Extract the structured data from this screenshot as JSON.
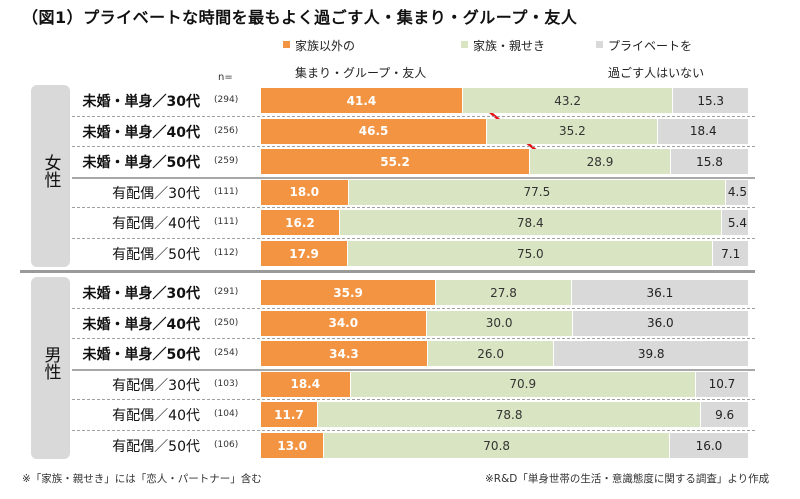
{
  "chart_data": {
    "type": "bar",
    "stacked": true,
    "orientation": "horizontal",
    "title": "（図1）プライベートな時間を最もよく過ごす人・集まり・グループ・友人",
    "n_header": "n=",
    "legend": [
      {
        "name": "家族以外の集まり・グループ・友人",
        "lines": [
          "家族以外の",
          "集まり・グループ・友人"
        ],
        "color": "#f39443"
      },
      {
        "name": "家族・親せき",
        "lines": [
          "家族・親せき"
        ],
        "color": "#d9e5c2"
      },
      {
        "name": "プライベートを過ごす人はいない",
        "lines": [
          "プライベートを",
          "過ごす人はいない"
        ],
        "color": "#d9d9d9"
      }
    ],
    "groups": [
      {
        "label": "女性",
        "rows": [
          {
            "label": "未婚・単身／30代",
            "bold": true,
            "n": "(294)",
            "values": [
              41.4,
              43.2,
              15.3
            ]
          },
          {
            "label": "未婚・単身／40代",
            "bold": true,
            "n": "(256)",
            "values": [
              46.5,
              35.2,
              18.4
            ]
          },
          {
            "label": "未婚・単身／50代",
            "bold": true,
            "n": "(259)",
            "values": [
              55.2,
              28.9,
              15.8
            ]
          },
          {
            "label": "有配偶／30代",
            "bold": false,
            "n": "(111)",
            "values": [
              18.0,
              77.5,
              4.5
            ]
          },
          {
            "label": "有配偶／40代",
            "bold": false,
            "n": "(111)",
            "values": [
              16.2,
              78.4,
              5.4
            ]
          },
          {
            "label": "有配偶／50代",
            "bold": false,
            "n": "(112)",
            "values": [
              17.9,
              75.0,
              7.1
            ]
          }
        ]
      },
      {
        "label": "男性",
        "rows": [
          {
            "label": "未婚・単身／30代",
            "bold": true,
            "n": "(291)",
            "values": [
              35.9,
              27.8,
              36.1
            ]
          },
          {
            "label": "未婚・単身／40代",
            "bold": true,
            "n": "(250)",
            "values": [
              34.0,
              30.0,
              36.0
            ]
          },
          {
            "label": "未婚・単身／50代",
            "bold": true,
            "n": "(254)",
            "values": [
              34.3,
              26.0,
              39.8
            ]
          },
          {
            "label": "有配偶／30代",
            "bold": false,
            "n": "(103)",
            "values": [
              18.4,
              70.9,
              10.7
            ]
          },
          {
            "label": "有配偶／40代",
            "bold": false,
            "n": "(104)",
            "values": [
              11.7,
              78.8,
              9.6
            ]
          },
          {
            "label": "有配偶／50代",
            "bold": false,
            "n": "(106)",
            "values": [
              13.0,
              70.8,
              16.0
            ]
          }
        ]
      }
    ],
    "xlim": [
      0,
      100
    ],
    "annotation": {
      "type": "arrow",
      "color": "#e8141b",
      "from_row": "女性 未婚・単身／30代",
      "to_row": "女性 未婚・単身／50代",
      "meaning": "increase in 家族以外の集まり・グループ・友人 with age"
    }
  },
  "footnotes": {
    "left": "※「家族・親せき」には「恋人・パートナー」含む",
    "right": "※R&D「単身世帯の生活・意識態度に関する調査」より作成"
  }
}
